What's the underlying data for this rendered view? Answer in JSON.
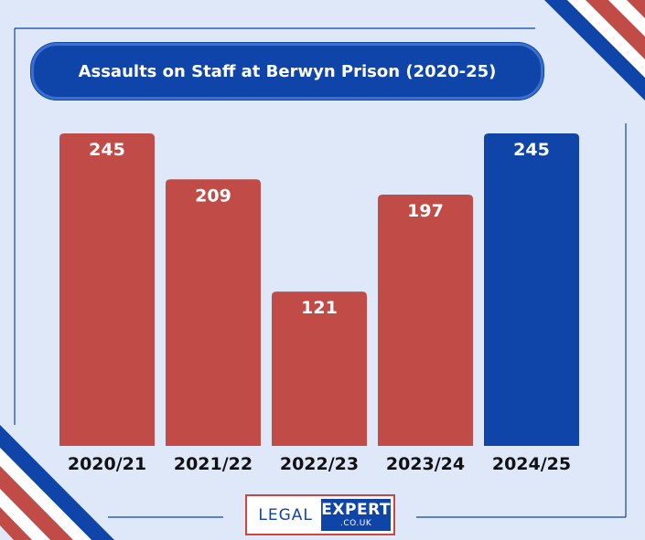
{
  "colors": {
    "background": "#dfe8f8",
    "red_bar": "#c14c47",
    "blue_bar": "#0f45a8",
    "title_bg": "#0f45a8"
  },
  "logo": {
    "left": "LEGAL",
    "right": "EXPERT",
    "sub": ".CO.UK"
  },
  "chart_data": {
    "type": "bar",
    "title": "Assaults on Staff at Berwyn Prison (2020-25)",
    "categories": [
      "2020/21",
      "2021/22",
      "2022/23",
      "2023/24",
      "2024/25"
    ],
    "values": [
      245,
      209,
      121,
      197,
      245
    ],
    "bar_colors": [
      "#c14c47",
      "#c14c47",
      "#c14c47",
      "#c14c47",
      "#0f45a8"
    ],
    "ylim": [
      0,
      245
    ],
    "grid": false,
    "legend": "none"
  }
}
